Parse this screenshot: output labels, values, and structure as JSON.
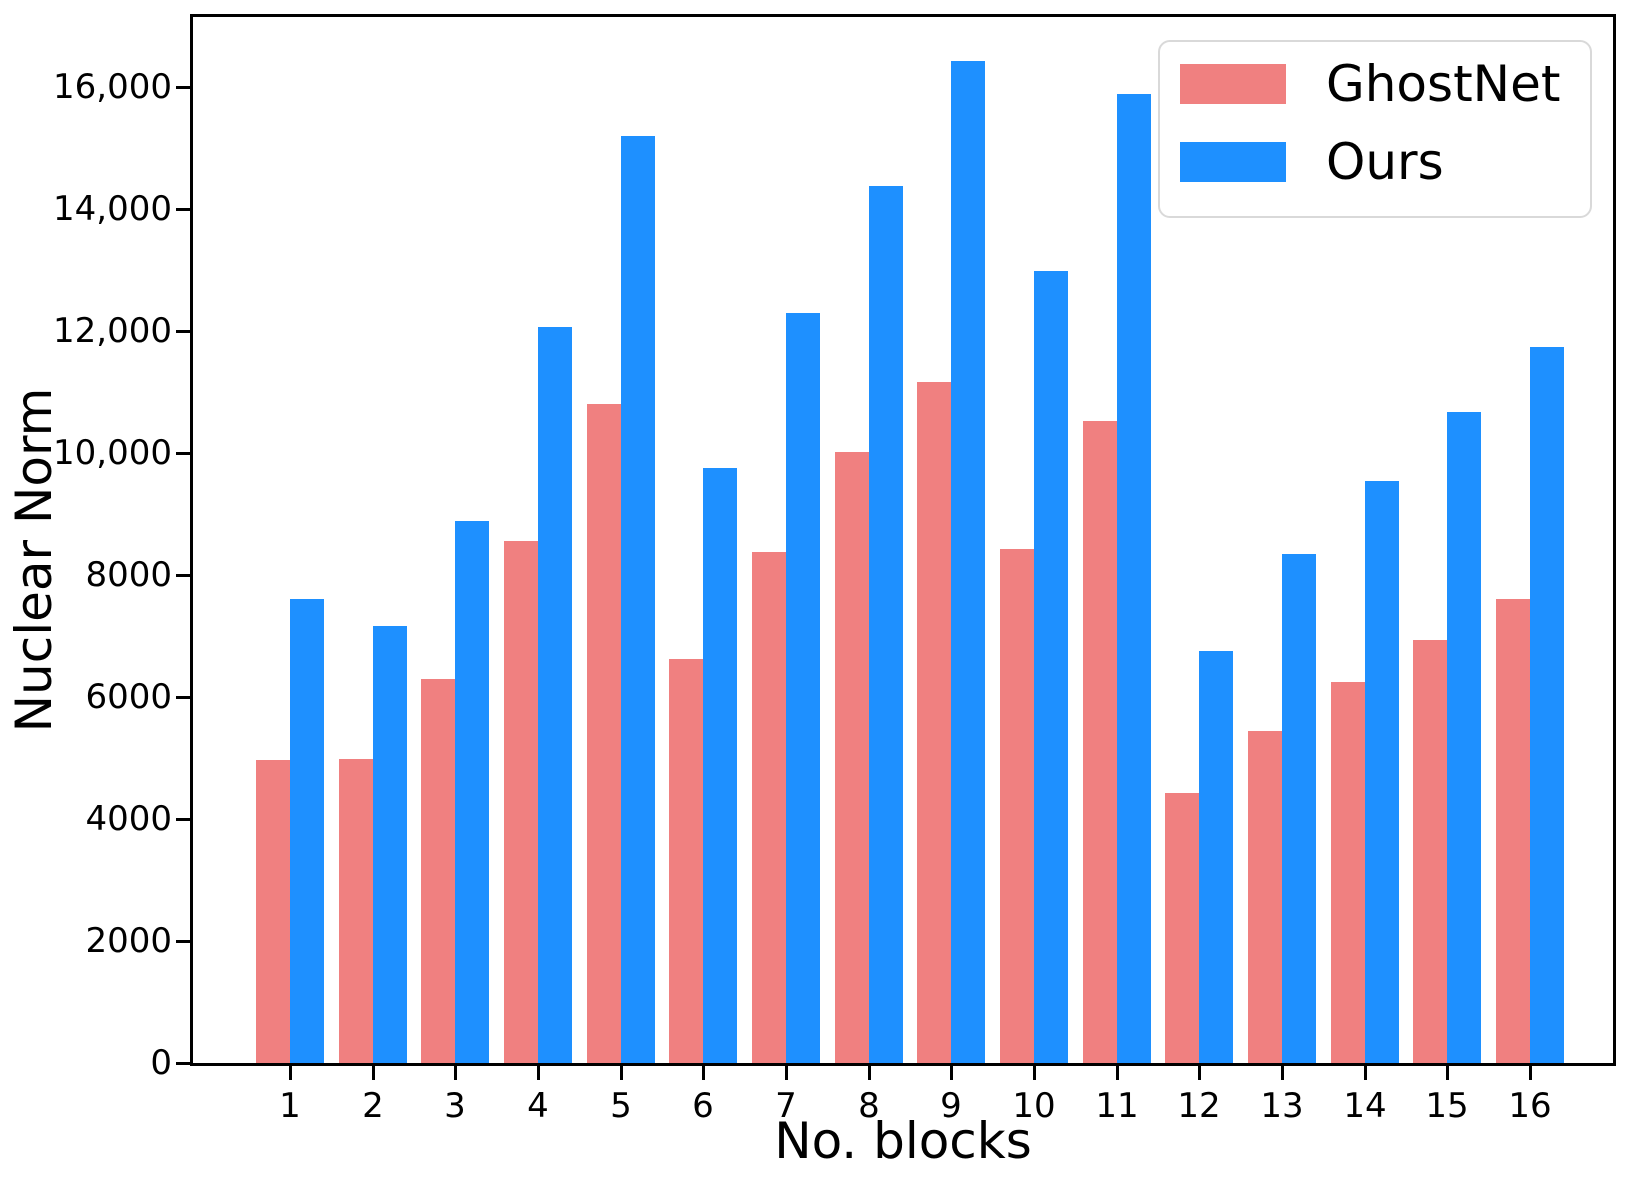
{
  "chart_data": {
    "type": "bar",
    "title": "",
    "xlabel": "No. blocks",
    "ylabel": "Nuclear Norm",
    "categories": [
      "1",
      "2",
      "3",
      "4",
      "5",
      "6",
      "7",
      "8",
      "9",
      "10",
      "11",
      "12",
      "13",
      "14",
      "15",
      "16"
    ],
    "series": [
      {
        "name": "GhostNet",
        "color": "#f08080",
        "values": [
          4960,
          4980,
          6290,
          8550,
          10800,
          6620,
          8370,
          10020,
          11170,
          8430,
          10530,
          4430,
          5440,
          6240,
          6940,
          7600
        ]
      },
      {
        "name": "Ours",
        "color": "#1e90ff",
        "values": [
          7600,
          7170,
          8890,
          12070,
          15200,
          9760,
          12290,
          14380,
          16430,
          12990,
          15890,
          6750,
          8350,
          9540,
          10670,
          11740
        ]
      }
    ],
    "ylim": [
      0,
      17150
    ],
    "ytick_values": [
      0,
      2000,
      4000,
      6000,
      8000,
      10000,
      12000,
      14000,
      16000
    ],
    "ytick_labels": [
      "0",
      "2000",
      "4000",
      "6000",
      "8000",
      "10,000",
      "12,000",
      "14,000",
      "16,000"
    ],
    "legend_position": "upper-right",
    "grid": false
  }
}
